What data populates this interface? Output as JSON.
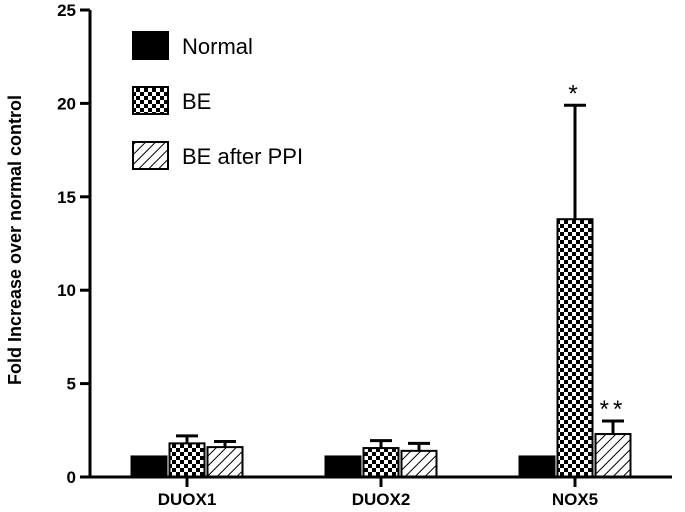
{
  "chart_data": {
    "type": "bar",
    "title": "",
    "xlabel": "",
    "ylabel": "Fold Increase over normal control",
    "ylim": [
      0,
      25
    ],
    "yticks": [
      0,
      5,
      10,
      15,
      20,
      25
    ],
    "categories": [
      "DUOX1",
      "DUOX2",
      "NOX5"
    ],
    "series": [
      {
        "name": "Normal",
        "pattern": "solid",
        "values": [
          1.1,
          1.1,
          1.1
        ],
        "errors": [
          0,
          0,
          0
        ]
      },
      {
        "name": "BE",
        "pattern": "checker",
        "values": [
          1.8,
          1.55,
          13.8
        ],
        "errors": [
          0.4,
          0.4,
          6.1
        ]
      },
      {
        "name": "BE after PPI",
        "pattern": "hatch",
        "values": [
          1.6,
          1.4,
          2.3
        ],
        "errors": [
          0.3,
          0.4,
          0.7
        ]
      }
    ],
    "annotations": [
      {
        "text": "*",
        "category": "NOX5",
        "series": "BE"
      },
      {
        "text": "**",
        "category": "NOX5",
        "series": "BE after PPI"
      }
    ],
    "legend_position": "top-left",
    "grid": false,
    "colors": {
      "bar_fill": "#000000",
      "background": "#ffffff"
    }
  }
}
